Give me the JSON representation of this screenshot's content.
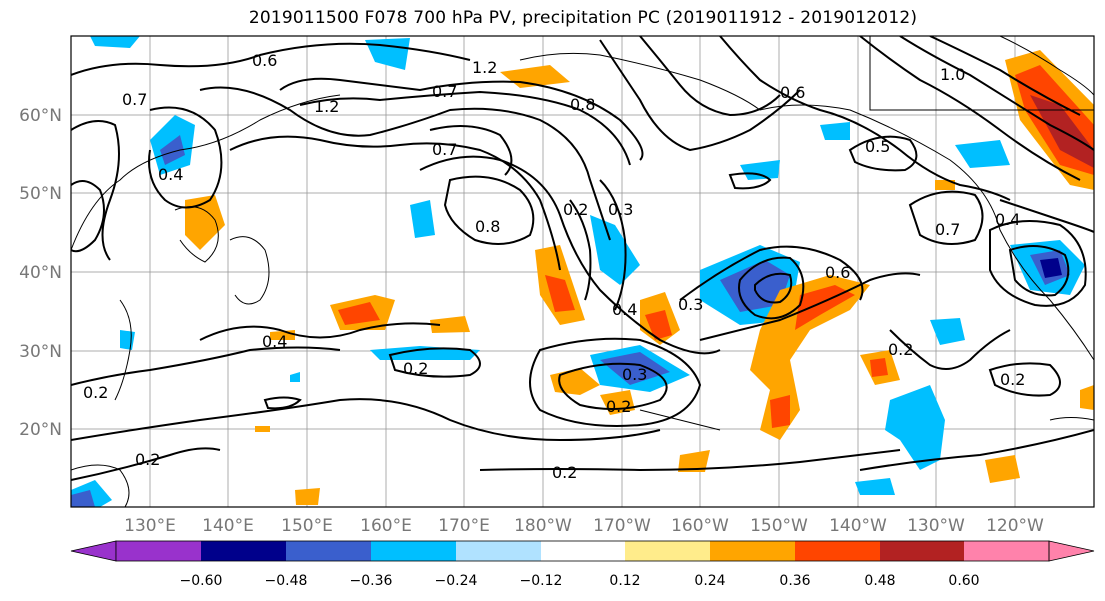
{
  "title": "2019011500 F078 700 hPa PV, precipitation PC (2019011912 - 2019012012)",
  "lat_labels": [
    "60°N",
    "50°N",
    "40°N",
    "30°N",
    "20°N"
  ],
  "lon_labels": [
    "130°E",
    "140°E",
    "150°E",
    "160°E",
    "170°E",
    "180°W",
    "170°W",
    "160°W",
    "150°W",
    "140°W",
    "130°W",
    "120°W"
  ],
  "colorbar": {
    "ticks": [
      "−0.60",
      "−0.48",
      "−0.36",
      "−0.24",
      "−0.12",
      "0.12",
      "0.24",
      "0.36",
      "0.48",
      "0.60"
    ],
    "colors": [
      "#9932cc",
      "#00008b",
      "#3a5fcd",
      "#00bfff",
      "#b0e2ff",
      "#ffffff",
      "#ffec8b",
      "#ffa500",
      "#ff4500",
      "#b22222",
      "#ff82ab"
    ]
  },
  "contour_labels": [
    "0.6",
    "1.2",
    "0.7",
    "1.2",
    "1.0",
    "0.8",
    "0.7",
    "0.8",
    "0.7",
    "0.2",
    "0.3",
    "0.4",
    "0.3",
    "0.6",
    "0.5",
    "0.7",
    "0.4",
    "0.4",
    "0.2",
    "0.2",
    "0.3",
    "0.2",
    "0.2",
    "0.2",
    "0.2",
    "0.6",
    "0.4",
    "0.2"
  ]
}
